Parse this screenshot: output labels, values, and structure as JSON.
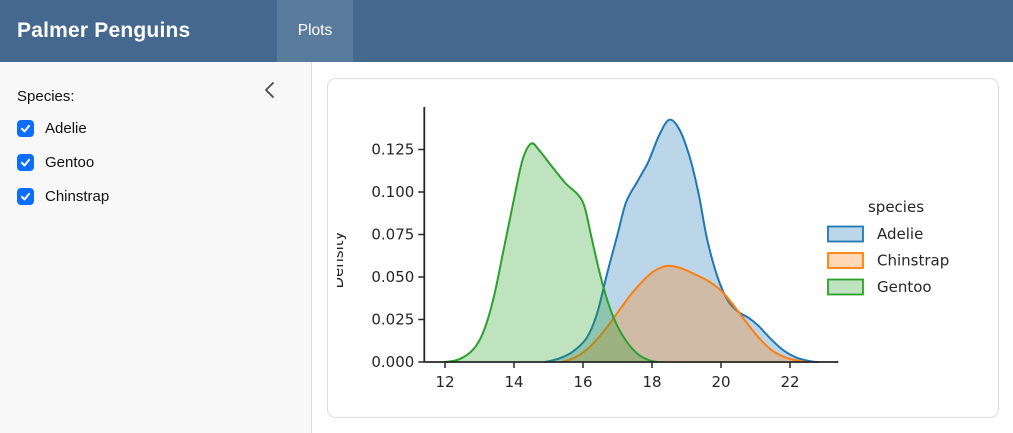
{
  "theme": {
    "navbar_bg": "#45698e",
    "navbar_active_bg": "#5a7c9c",
    "sidebar_bg": "#f8f8f8",
    "border": "#dcdcdc",
    "checkbox_accent": "#0d6efd"
  },
  "header": {
    "title": "Palmer Penguins",
    "tabs": [
      {
        "label": "Plots",
        "active": true
      }
    ]
  },
  "sidebar": {
    "label": "Species:",
    "collapse_icon": "chevron-left-icon",
    "checkboxes": [
      {
        "label": "Adelie",
        "checked": true
      },
      {
        "label": "Gentoo",
        "checked": true
      },
      {
        "label": "Chinstrap",
        "checked": true
      }
    ]
  },
  "chart_data": {
    "type": "area",
    "subtype": "kde-density",
    "title": "",
    "xlabel": "",
    "ylabel": "Density",
    "xlim": [
      11.4,
      23.4
    ],
    "ylim": [
      0,
      0.15
    ],
    "grid": false,
    "xticks": {
      "values": [
        12,
        14,
        16,
        18,
        20,
        22
      ],
      "labels": [
        "12",
        "14",
        "16",
        "18",
        "20",
        "22"
      ]
    },
    "yticks": {
      "values": [
        0,
        0.025,
        0.05,
        0.075,
        0.1,
        0.125
      ],
      "labels": [
        "0.000",
        "0.025",
        "0.050",
        "0.075",
        "0.100",
        "0.125"
      ]
    },
    "legend": {
      "title": "species",
      "position": "center right",
      "frame": false,
      "entries": [
        "Adelie",
        "Chinstrap",
        "Gentoo"
      ]
    },
    "series": [
      {
        "name": "Adelie",
        "color": "#1f77b4",
        "fill_opacity": 0.3,
        "points": [
          [
            14.9,
            0
          ],
          [
            15.3,
            0.002
          ],
          [
            15.7,
            0.006
          ],
          [
            16.1,
            0.014
          ],
          [
            16.4,
            0.028
          ],
          [
            16.7,
            0.052
          ],
          [
            17.0,
            0.075
          ],
          [
            17.25,
            0.094
          ],
          [
            17.6,
            0.107
          ],
          [
            17.9,
            0.118
          ],
          [
            18.2,
            0.133
          ],
          [
            18.5,
            0.1425
          ],
          [
            18.8,
            0.1365
          ],
          [
            19.1,
            0.12
          ],
          [
            19.35,
            0.099
          ],
          [
            19.6,
            0.072
          ],
          [
            19.9,
            0.05
          ],
          [
            20.2,
            0.036
          ],
          [
            20.5,
            0.0295
          ],
          [
            20.8,
            0.026
          ],
          [
            21.1,
            0.021
          ],
          [
            21.4,
            0.0145
          ],
          [
            21.8,
            0.007
          ],
          [
            22.2,
            0.0025
          ],
          [
            22.6,
            0.0004
          ],
          [
            22.8,
            0
          ]
        ]
      },
      {
        "name": "Chinstrap",
        "color": "#ff7f0e",
        "fill_opacity": 0.3,
        "points": [
          [
            15.4,
            0
          ],
          [
            15.8,
            0.003
          ],
          [
            16.2,
            0.009
          ],
          [
            16.6,
            0.018
          ],
          [
            17.0,
            0.029
          ],
          [
            17.4,
            0.04
          ],
          [
            17.8,
            0.049
          ],
          [
            18.1,
            0.054
          ],
          [
            18.45,
            0.0565
          ],
          [
            18.8,
            0.0555
          ],
          [
            19.2,
            0.052
          ],
          [
            19.6,
            0.048
          ],
          [
            20.0,
            0.042
          ],
          [
            20.3,
            0.035
          ],
          [
            20.6,
            0.027
          ],
          [
            20.9,
            0.019
          ],
          [
            21.2,
            0.012
          ],
          [
            21.5,
            0.0065
          ],
          [
            21.9,
            0.0025
          ],
          [
            22.3,
            0.0005
          ],
          [
            22.5,
            0
          ]
        ]
      },
      {
        "name": "Gentoo",
        "color": "#2ca02c",
        "fill_opacity": 0.3,
        "points": [
          [
            12.0,
            0
          ],
          [
            12.4,
            0.0015
          ],
          [
            12.8,
            0.007
          ],
          [
            13.1,
            0.017
          ],
          [
            13.4,
            0.037
          ],
          [
            13.7,
            0.066
          ],
          [
            14.0,
            0.096
          ],
          [
            14.25,
            0.119
          ],
          [
            14.5,
            0.1285
          ],
          [
            14.75,
            0.124
          ],
          [
            15.1,
            0.115
          ],
          [
            15.5,
            0.105
          ],
          [
            15.85,
            0.0985
          ],
          [
            16.05,
            0.091
          ],
          [
            16.25,
            0.073
          ],
          [
            16.5,
            0.051
          ],
          [
            16.75,
            0.0335
          ],
          [
            17.0,
            0.021
          ],
          [
            17.3,
            0.011
          ],
          [
            17.6,
            0.0045
          ],
          [
            17.9,
            0.0012
          ],
          [
            18.15,
            0
          ]
        ]
      }
    ]
  }
}
